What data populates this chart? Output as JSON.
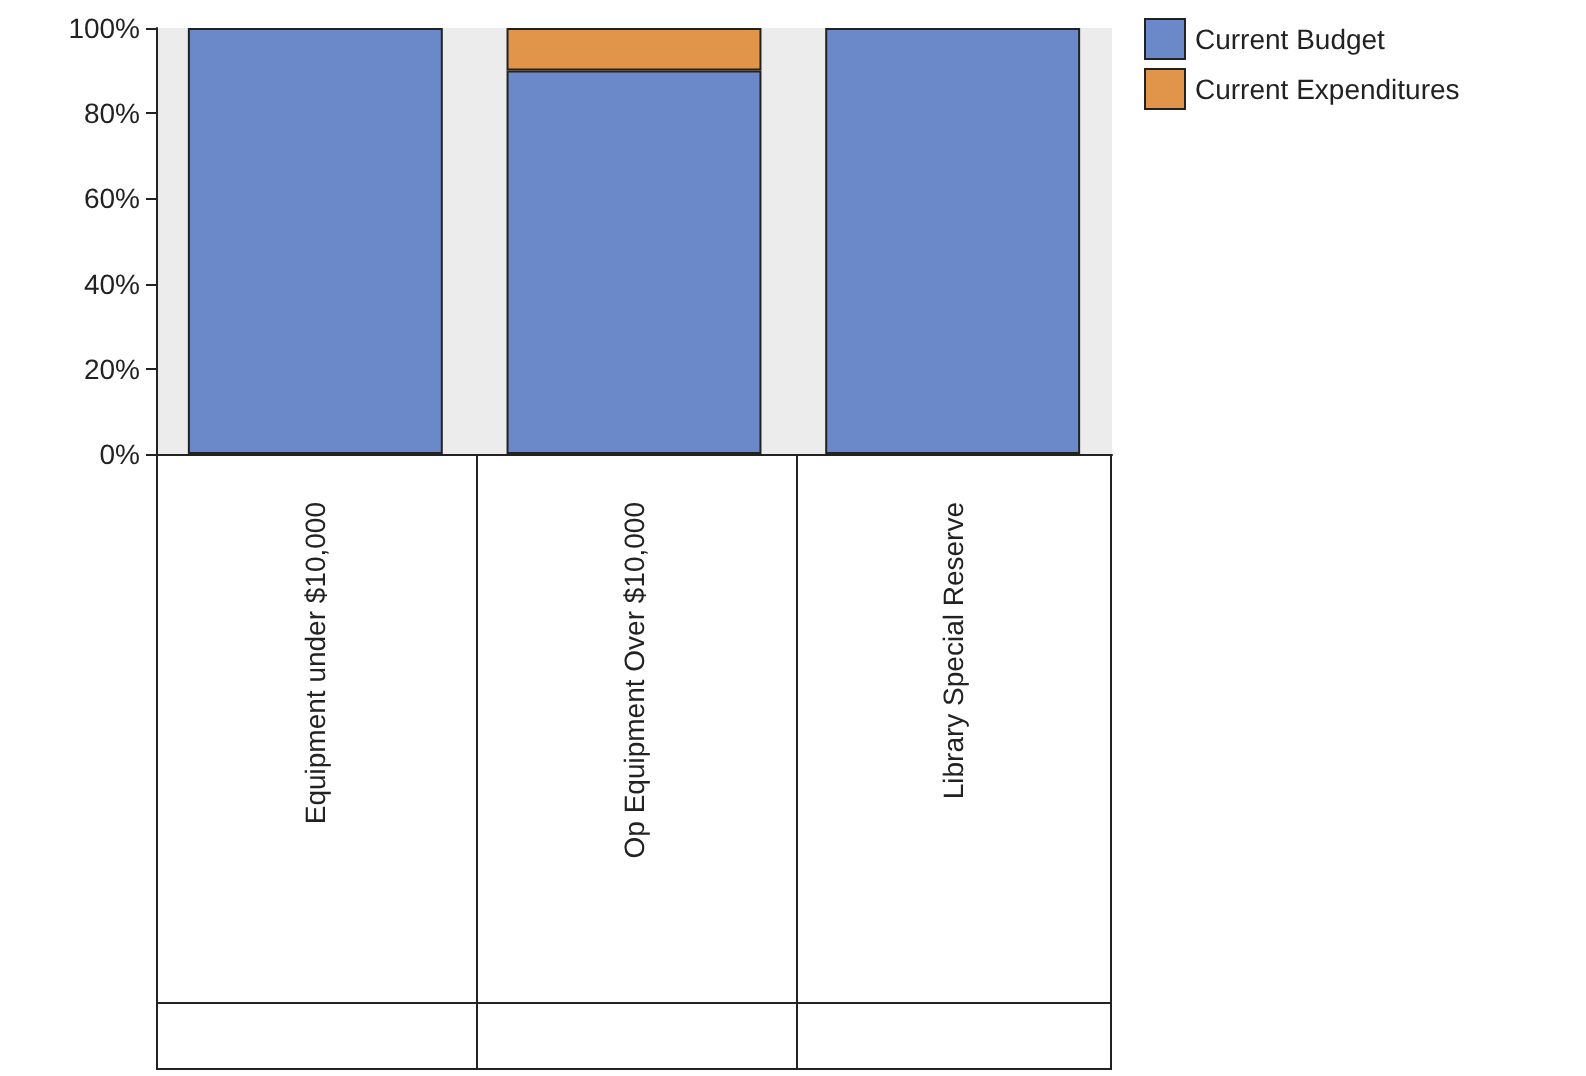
{
  "chart_data": {
    "type": "bar",
    "stacked": true,
    "categories": [
      "Equipment under $10,000",
      "Op Equipment Over $10,000",
      "Library Special Reserve"
    ],
    "series": [
      {
        "name": "Current Budget",
        "color": "#6b89c9",
        "values": [
          100,
          90,
          100
        ]
      },
      {
        "name": "Current Expenditures",
        "color": "#e0954a",
        "values": [
          null,
          10,
          null
        ]
      }
    ],
    "ylim": [
      0,
      100
    ],
    "yticks": [
      {
        "value": 0,
        "label": "0%"
      },
      {
        "value": 20,
        "label": "20%"
      },
      {
        "value": 40,
        "label": "40%"
      },
      {
        "value": 60,
        "label": "60%"
      },
      {
        "value": 80,
        "label": "80%"
      },
      {
        "value": 100,
        "label": "100%"
      }
    ],
    "grid": false,
    "legend": "top right"
  }
}
